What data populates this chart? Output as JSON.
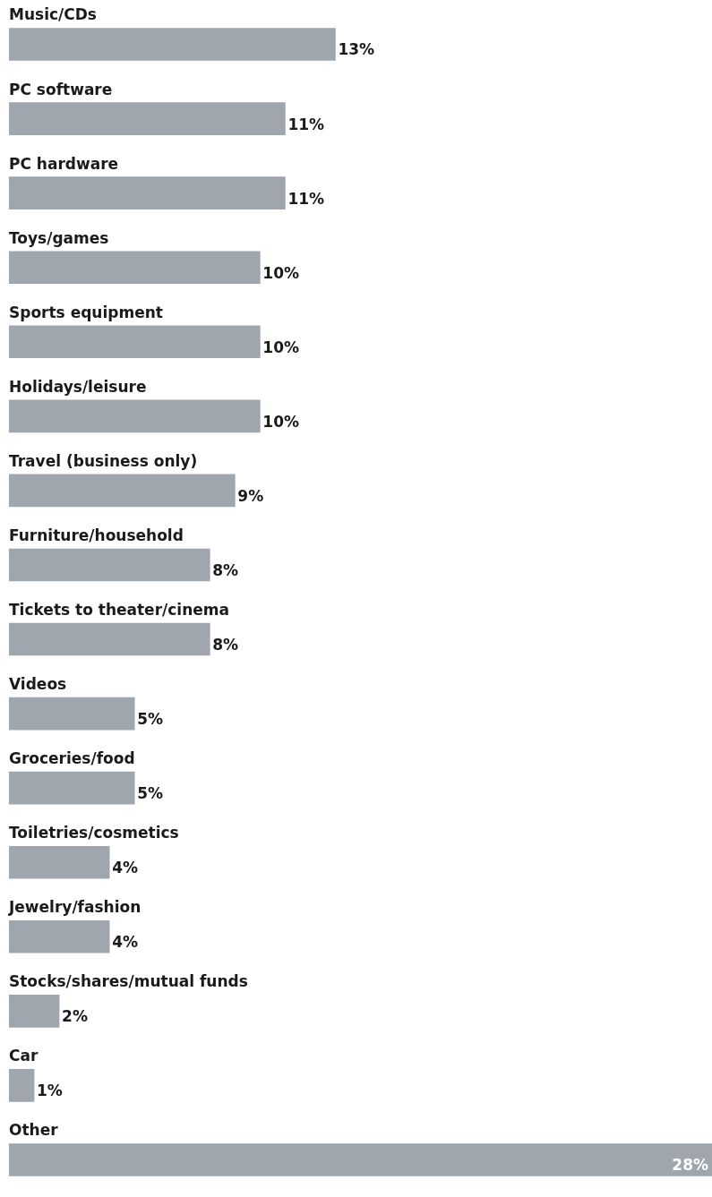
{
  "chart_data": {
    "type": "bar",
    "orientation": "horizontal",
    "categories": [
      "Music/CDs",
      "PC software",
      "PC hardware",
      "Toys/games",
      "Sports equipment",
      "Holidays/leisure",
      "Travel (business only)",
      "Furniture/household",
      "Tickets to theater/cinema",
      "Videos",
      "Groceries/food",
      "Toiletries/cosmetics",
      "Jewelry/fashion",
      "Stocks/shares/mutual funds",
      "Car",
      "Other"
    ],
    "values": [
      13,
      11,
      11,
      10,
      10,
      10,
      9,
      8,
      8,
      5,
      5,
      4,
      4,
      2,
      1,
      28
    ],
    "value_labels": [
      "13%",
      "11%",
      "11%",
      "10%",
      "10%",
      "10%",
      "9%",
      "8%",
      "8%",
      "5%",
      "5%",
      "4%",
      "4%",
      "2%",
      "1%",
      "28%"
    ],
    "color": "#a0a6ad"
  }
}
